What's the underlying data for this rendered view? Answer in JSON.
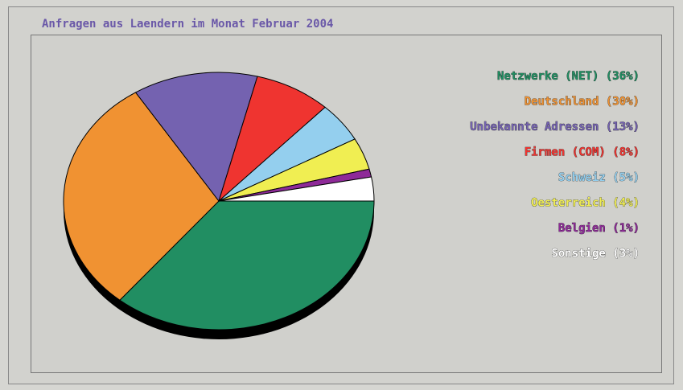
{
  "chart_data": {
    "type": "pie",
    "title": "Anfragen aus Laendern im Monat Februar 2004",
    "categories": [
      "Netzwerke (NET)",
      "Deutschland",
      "Unbekannte Adressen",
      "Firmen (COM)",
      "Schweiz",
      "Oesterreich",
      "Belgien",
      "Sonstige"
    ],
    "values": [
      36,
      30,
      13,
      8,
      5,
      4,
      1,
      3
    ],
    "value_labels": [
      "(36%)",
      "(30%)",
      "(13%)",
      "(8%)",
      "(5%)",
      "(4%)",
      "(1%)",
      "(3%)"
    ],
    "colors": [
      "#218e62",
      "#f09232",
      "#7462b0",
      "#ef3430",
      "#94cfee",
      "#f0ee52",
      "#8e2a98",
      "#ffffff"
    ]
  }
}
